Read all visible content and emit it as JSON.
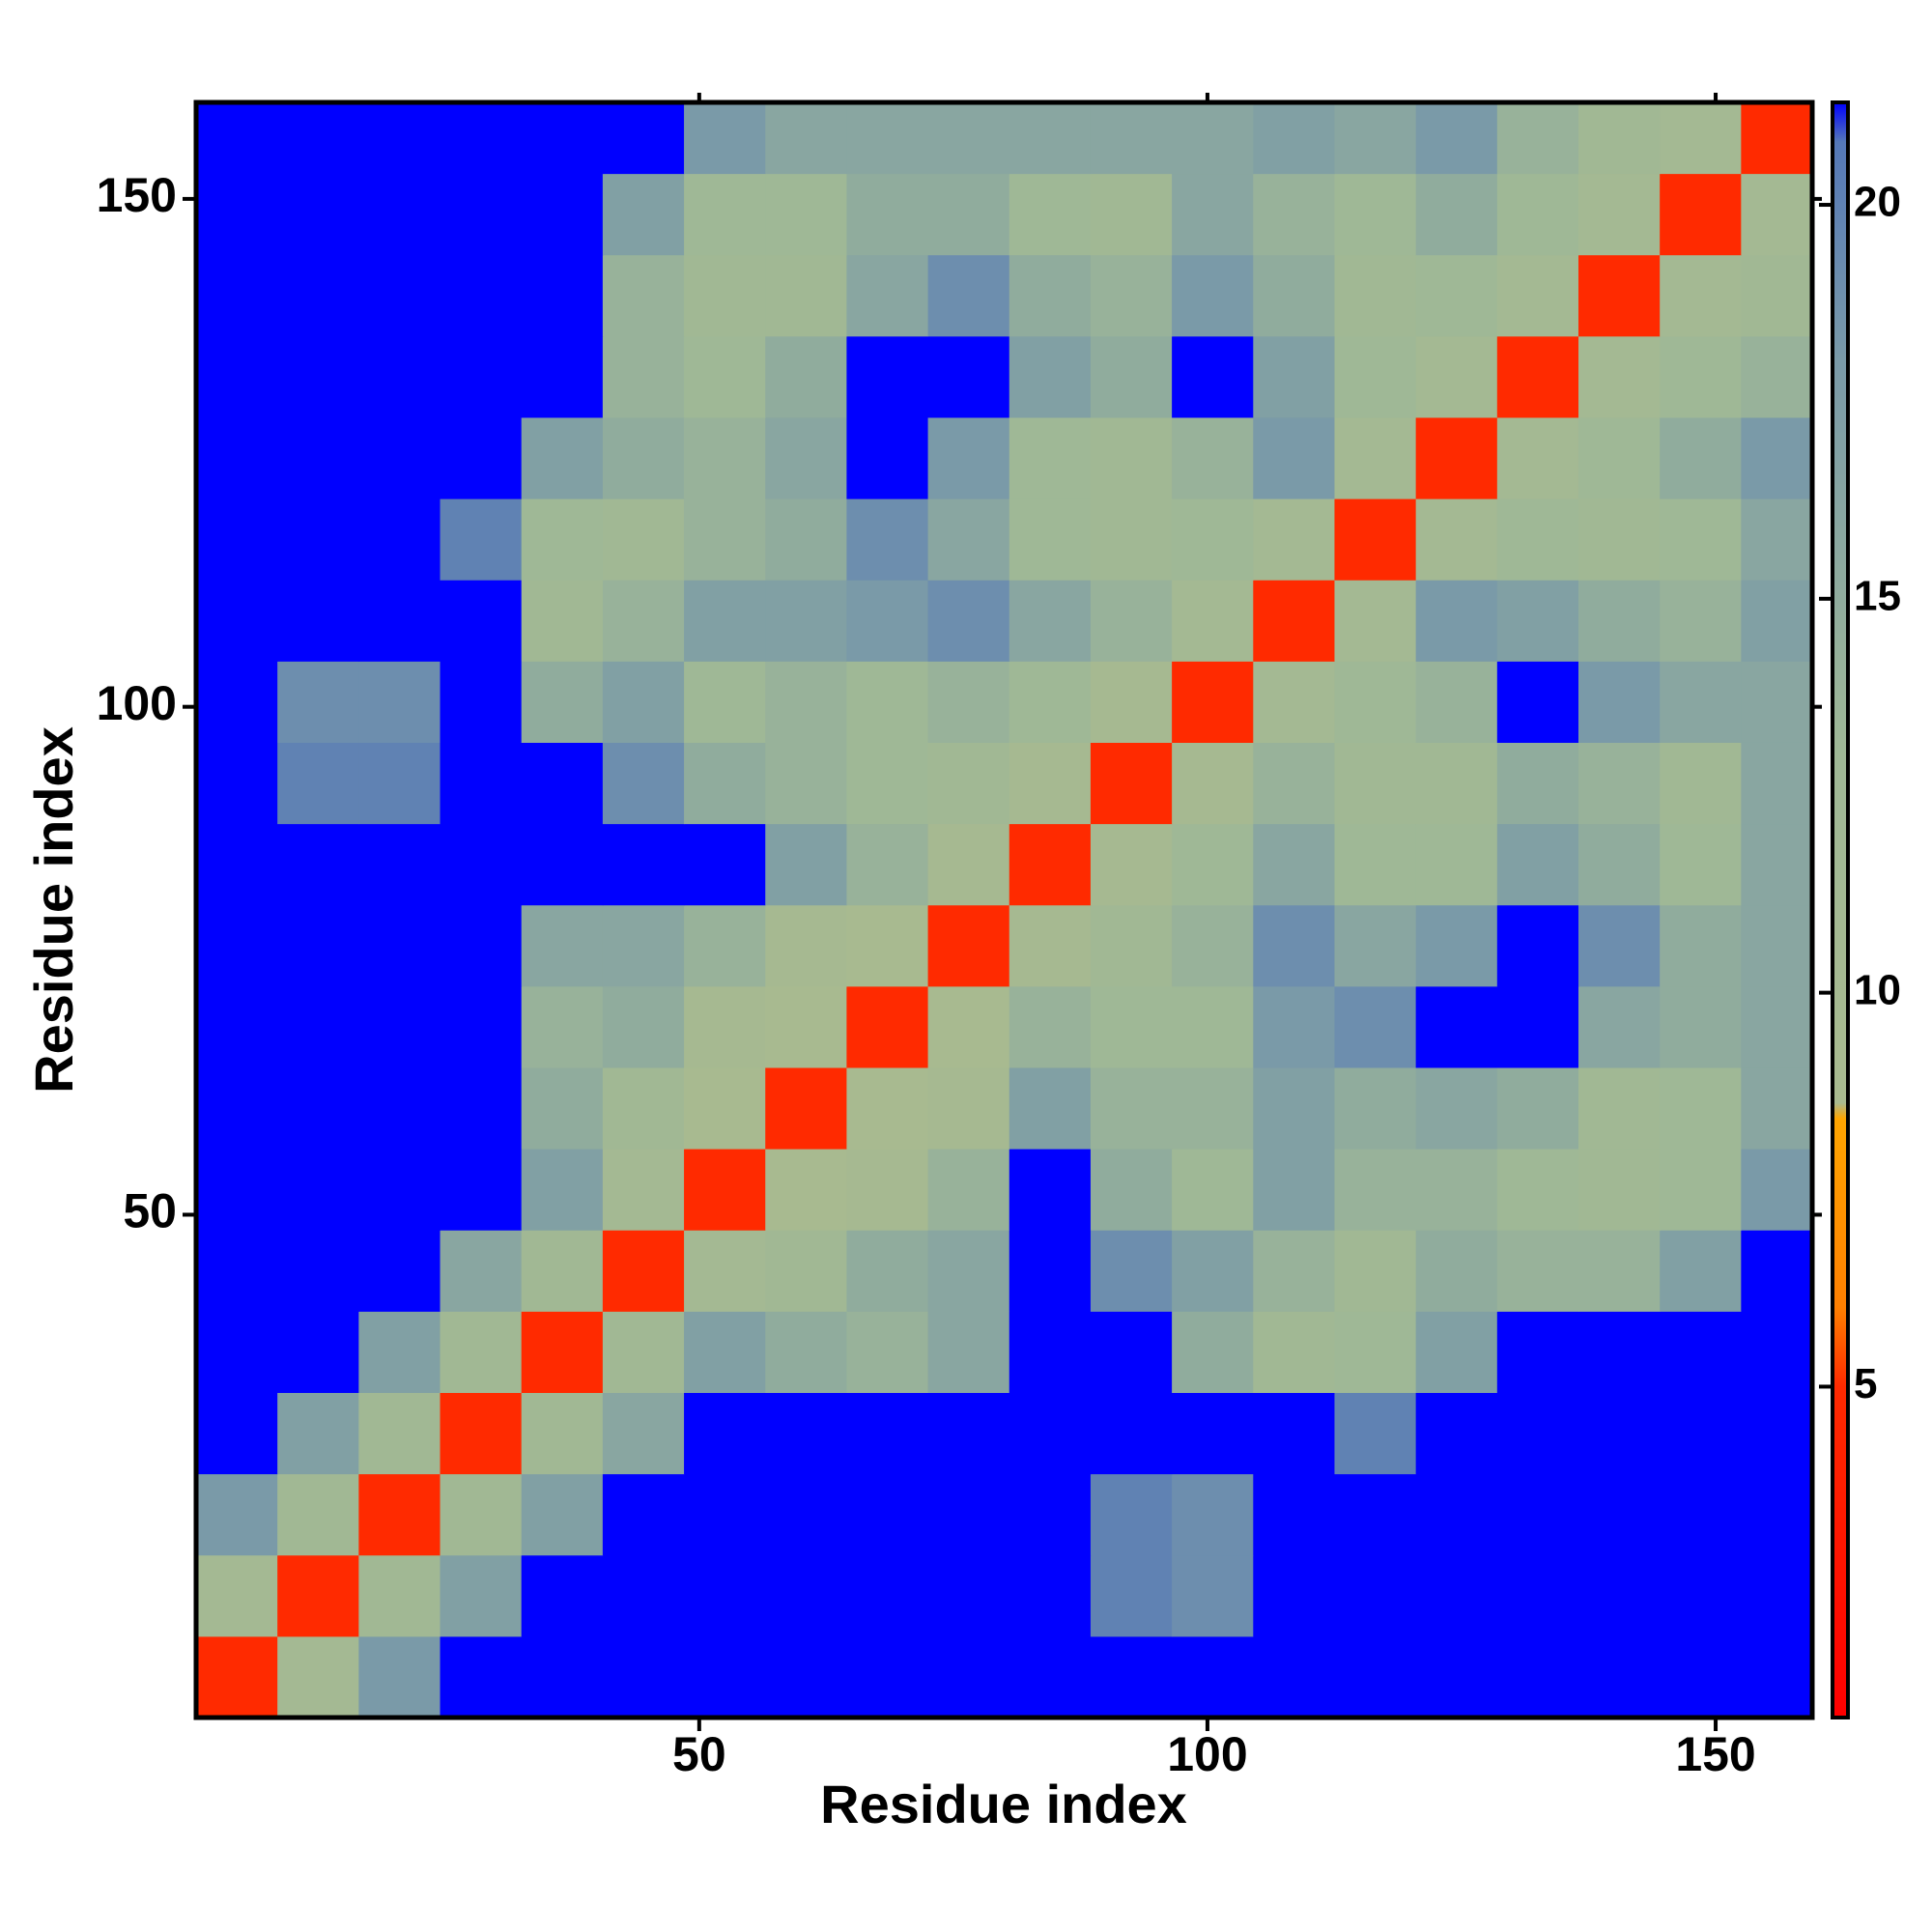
{
  "chart_data": {
    "type": "heatmap",
    "xlabel": "Residue index",
    "ylabel": "Residue index",
    "x": [
      4.5,
      12.5,
      20.5,
      28.5,
      36.5,
      44.5,
      52.5,
      60.5,
      68.5,
      76.5,
      84.5,
      92.5,
      100.5,
      108.5,
      116.5,
      124.5,
      132.5,
      140.5,
      148.5,
      156.5
    ],
    "y": [
      4.5,
      12.5,
      20.5,
      28.5,
      36.5,
      44.5,
      52.5,
      60.5,
      68.5,
      76.5,
      84.5,
      92.5,
      100.5,
      108.5,
      116.5,
      124.5,
      132.5,
      140.5,
      148.5,
      156.5
    ],
    "values": [
      [
        5,
        11,
        18,
        21.3,
        21.3,
        21.3,
        21.3,
        21.3,
        21.3,
        21.3,
        21.3,
        21.3,
        21.3,
        21.3,
        21.3,
        21.3,
        21.3,
        21.3,
        21.3,
        21.3
      ],
      [
        11,
        5,
        12,
        17,
        21.3,
        21.3,
        21.3,
        21.3,
        21.3,
        21.3,
        21.3,
        20,
        19,
        21.3,
        21.3,
        21.3,
        21.3,
        21.3,
        21.3,
        21.3
      ],
      [
        18,
        12,
        5,
        12,
        17,
        21.3,
        21.3,
        21.3,
        21.3,
        21.3,
        21.3,
        20,
        19,
        21.3,
        21.3,
        21.3,
        21.3,
        21.3,
        21.3,
        21.3
      ],
      [
        21.3,
        17,
        12,
        5,
        12,
        16,
        21.3,
        21.3,
        21.3,
        21.3,
        21.3,
        21.3,
        21.3,
        21.3,
        20,
        21.3,
        21.3,
        21.3,
        21.3,
        21.3
      ],
      [
        21.3,
        21.3,
        17,
        12,
        5,
        12,
        17,
        15,
        14,
        16,
        21.3,
        21.3,
        15,
        12,
        13,
        17,
        21.3,
        21.3,
        21.3,
        21.3
      ],
      [
        21.3,
        21.3,
        21.3,
        16,
        12,
        5,
        11,
        12,
        15,
        16,
        21.3,
        19,
        17,
        14,
        12,
        15,
        14,
        14,
        17,
        21.3
      ],
      [
        21.3,
        21.3,
        21.3,
        21.3,
        17,
        11,
        5,
        9,
        10,
        14,
        21.3,
        15,
        13,
        17,
        14,
        14,
        13,
        12,
        13,
        18
      ],
      [
        21.3,
        21.3,
        21.3,
        21.3,
        15,
        12,
        9,
        5,
        9,
        10,
        17,
        14,
        14,
        17,
        15,
        16,
        15,
        12,
        13,
        16
      ],
      [
        21.3,
        21.3,
        21.3,
        21.3,
        14,
        15,
        10,
        9,
        5,
        9,
        14,
        13,
        13,
        18,
        19,
        21.3,
        21.3,
        16,
        15,
        16
      ],
      [
        21.3,
        21.3,
        21.3,
        21.3,
        16,
        16,
        14,
        10,
        9,
        5,
        10,
        12,
        14,
        19,
        16,
        18,
        21.3,
        19,
        15,
        16
      ],
      [
        21.3,
        21.3,
        21.3,
        21.3,
        21.3,
        21.3,
        21.3,
        17,
        14,
        10,
        5,
        10,
        13,
        16,
        13,
        13,
        17,
        15,
        13,
        16
      ],
      [
        21.3,
        20,
        20,
        21.3,
        21.3,
        19,
        15,
        14,
        13,
        12,
        10,
        5,
        10,
        14,
        12,
        12,
        15,
        14,
        12,
        16
      ],
      [
        21.3,
        19,
        19,
        21.3,
        15,
        17,
        13,
        14,
        13,
        14,
        13,
        10,
        5,
        11,
        13,
        14,
        21.3,
        18,
        16,
        16
      ],
      [
        21.3,
        21.3,
        21.3,
        21.3,
        12,
        14,
        17,
        17,
        18,
        19,
        16,
        14,
        11,
        5,
        11,
        18,
        17,
        15,
        14,
        17
      ],
      [
        21.3,
        21.3,
        21.3,
        20,
        13,
        12,
        14,
        15,
        19,
        16,
        13,
        12,
        13,
        11,
        5,
        11,
        13,
        12,
        13,
        16
      ],
      [
        21.3,
        21.3,
        21.3,
        21.3,
        17,
        15,
        14,
        16,
        21.3,
        18,
        13,
        12,
        14,
        18,
        11,
        5,
        11,
        13,
        15,
        18
      ],
      [
        21.3,
        21.3,
        21.3,
        21.3,
        21.3,
        14,
        13,
        15,
        21.3,
        21.3,
        17,
        15,
        21.3,
        17,
        13,
        11,
        5,
        11,
        13,
        14
      ],
      [
        21.3,
        21.3,
        21.3,
        21.3,
        21.3,
        14,
        12,
        12,
        16,
        19,
        15,
        14,
        18,
        15,
        12,
        13,
        11,
        5,
        11,
        12
      ],
      [
        21.3,
        21.3,
        21.3,
        21.3,
        21.3,
        17,
        13,
        13,
        15,
        15,
        13,
        12,
        16,
        14,
        13,
        15,
        13,
        11,
        5,
        11
      ],
      [
        21.3,
        21.3,
        21.3,
        21.3,
        21.3,
        21.3,
        18,
        16,
        16,
        16,
        16,
        16,
        16,
        17,
        16,
        18,
        14,
        12,
        11,
        5
      ]
    ],
    "xlim": [
      0.5,
      159.5
    ],
    "ylim": [
      0.5,
      159.5
    ],
    "xticks": [
      50,
      100,
      150
    ],
    "yticks": [
      50,
      100,
      150
    ],
    "zlim": [
      0.8,
      21.3
    ],
    "zticks": [
      5,
      10,
      15,
      20
    ],
    "colorscale": [
      [
        0.8,
        "#ff0000"
      ],
      [
        5,
        "#ff2a00"
      ],
      [
        6,
        "#ff7f00"
      ],
      [
        8.4,
        "#ffa500"
      ],
      [
        8.6,
        "#a9ba8f"
      ],
      [
        13,
        "#9fb896"
      ],
      [
        18,
        "#7a9aa8"
      ],
      [
        20.8,
        "#5578b8"
      ],
      [
        21.3,
        "#0000ff"
      ]
    ]
  }
}
